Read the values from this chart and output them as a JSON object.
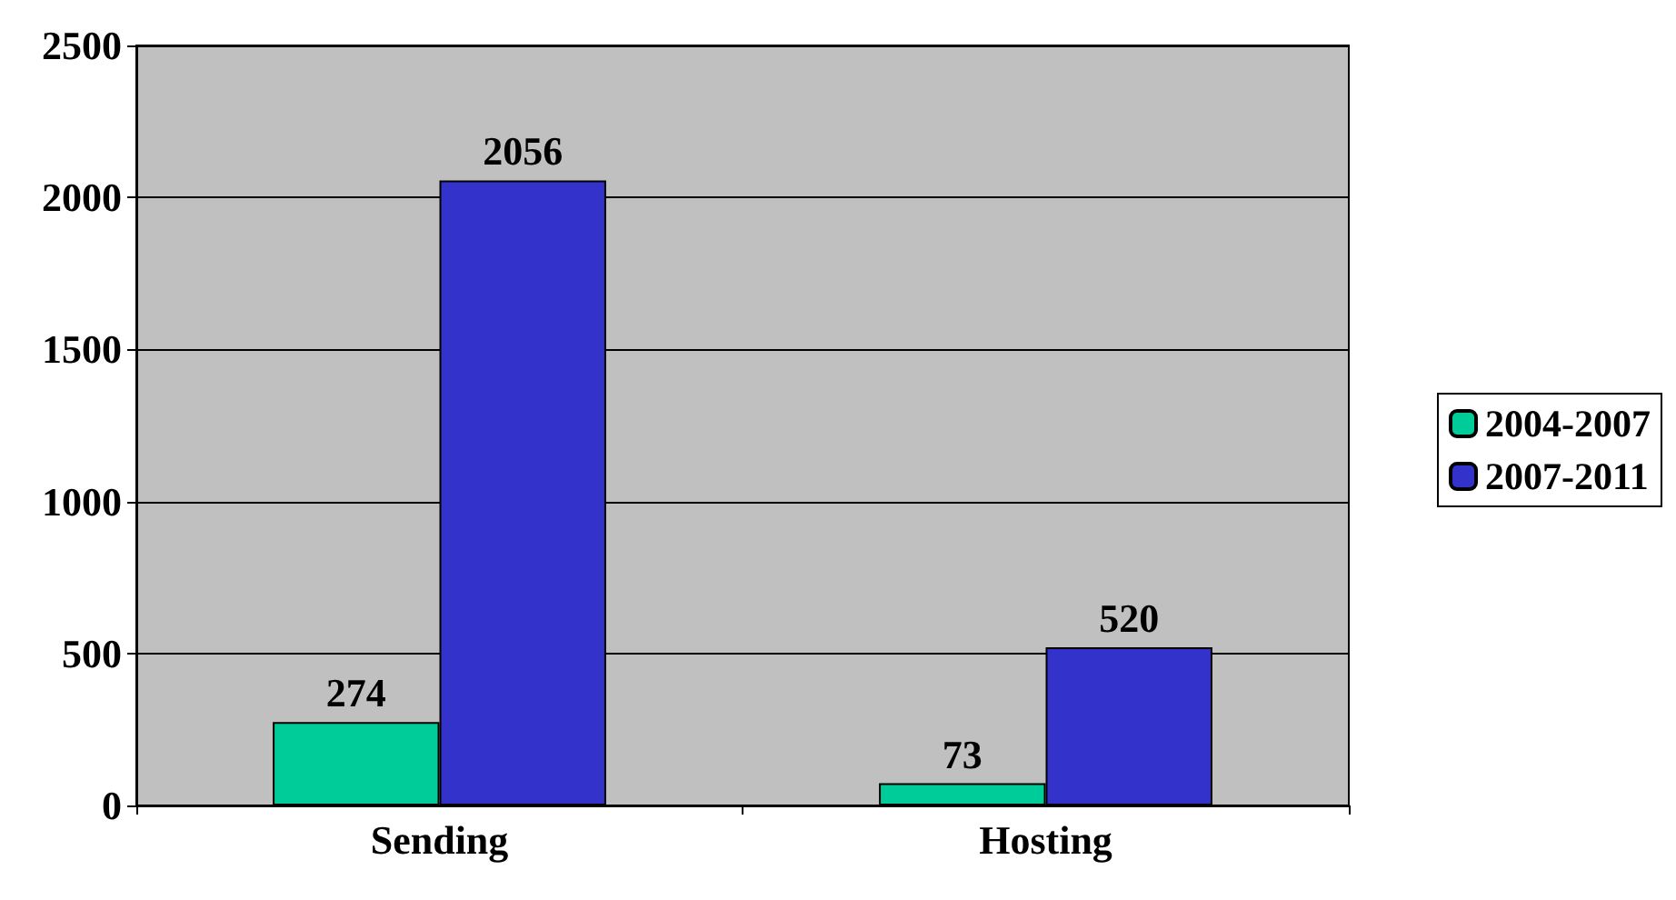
{
  "chart_data": {
    "type": "bar",
    "categories": [
      "Sending",
      "Hosting"
    ],
    "series": [
      {
        "name": "2004-2007",
        "color": "#00cc99",
        "values": [
          274,
          73
        ]
      },
      {
        "name": "2007-2011",
        "color": "#3333cc",
        "values": [
          2056,
          520
        ]
      }
    ],
    "ylim": [
      0,
      2500
    ],
    "yticks": [
      0,
      500,
      1000,
      1500,
      2000,
      2500
    ],
    "grid": "y",
    "legend": "right",
    "data_labels": true
  }
}
